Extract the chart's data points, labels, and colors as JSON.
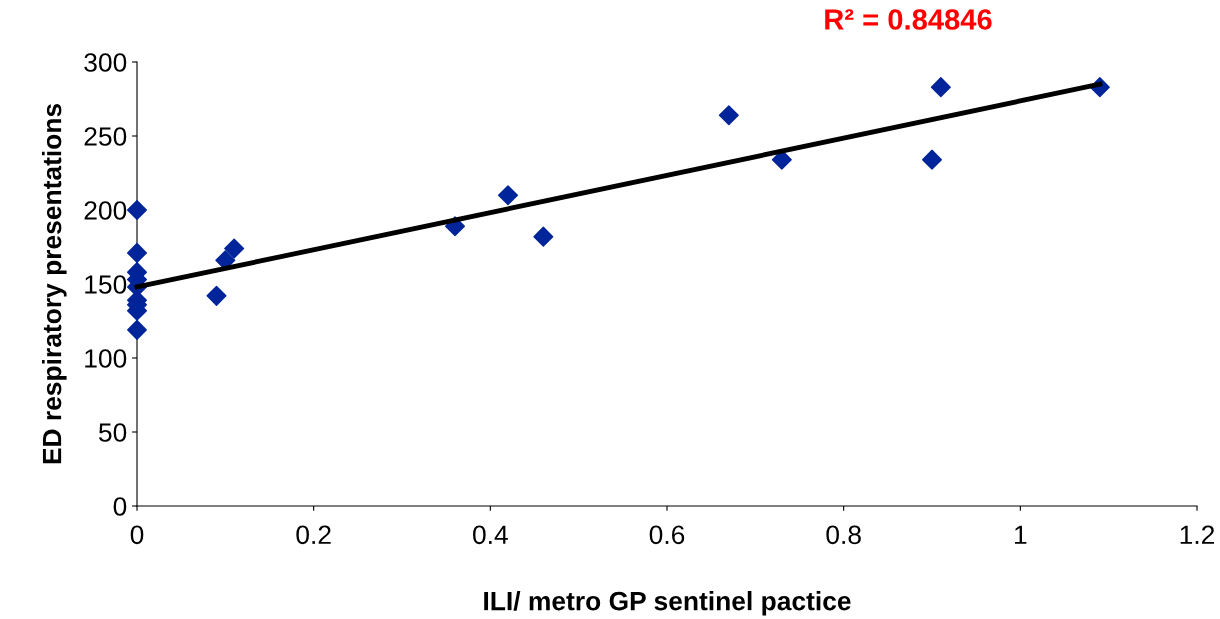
{
  "chart_data": {
    "type": "scatter",
    "xlabel": "ILI/ metro GP sentinel pactice",
    "ylabel": "ED respiratory presentations",
    "annotations": [
      "R² = 0.84846"
    ],
    "xlim": [
      0,
      1.2
    ],
    "xticks": [
      0,
      0.2,
      0.4,
      0.6,
      0.8,
      1,
      1.2
    ],
    "ylim": [
      0,
      300
    ],
    "yticks": [
      0,
      50,
      100,
      150,
      200,
      250,
      300
    ],
    "grid": false,
    "legend": false,
    "series": [
      {
        "marker": "diamond",
        "color": "#002499",
        "x": [
          0,
          0,
          0,
          0,
          0,
          0,
          0,
          0,
          0,
          0.09,
          0.1,
          0.11,
          0.36,
          0.42,
          0.46,
          0.67,
          0.73,
          0.9,
          0.91,
          1.09
        ],
        "values": [
          200,
          171,
          158,
          153,
          148,
          139,
          136,
          132,
          119,
          142,
          166,
          174,
          189,
          210,
          182,
          264,
          234,
          234,
          283,
          283
        ]
      },
      {
        "type": "line",
        "marker": "none",
        "color": "#000000",
        "x": [
          0,
          1.09
        ],
        "values": [
          148,
          285
        ]
      }
    ]
  }
}
